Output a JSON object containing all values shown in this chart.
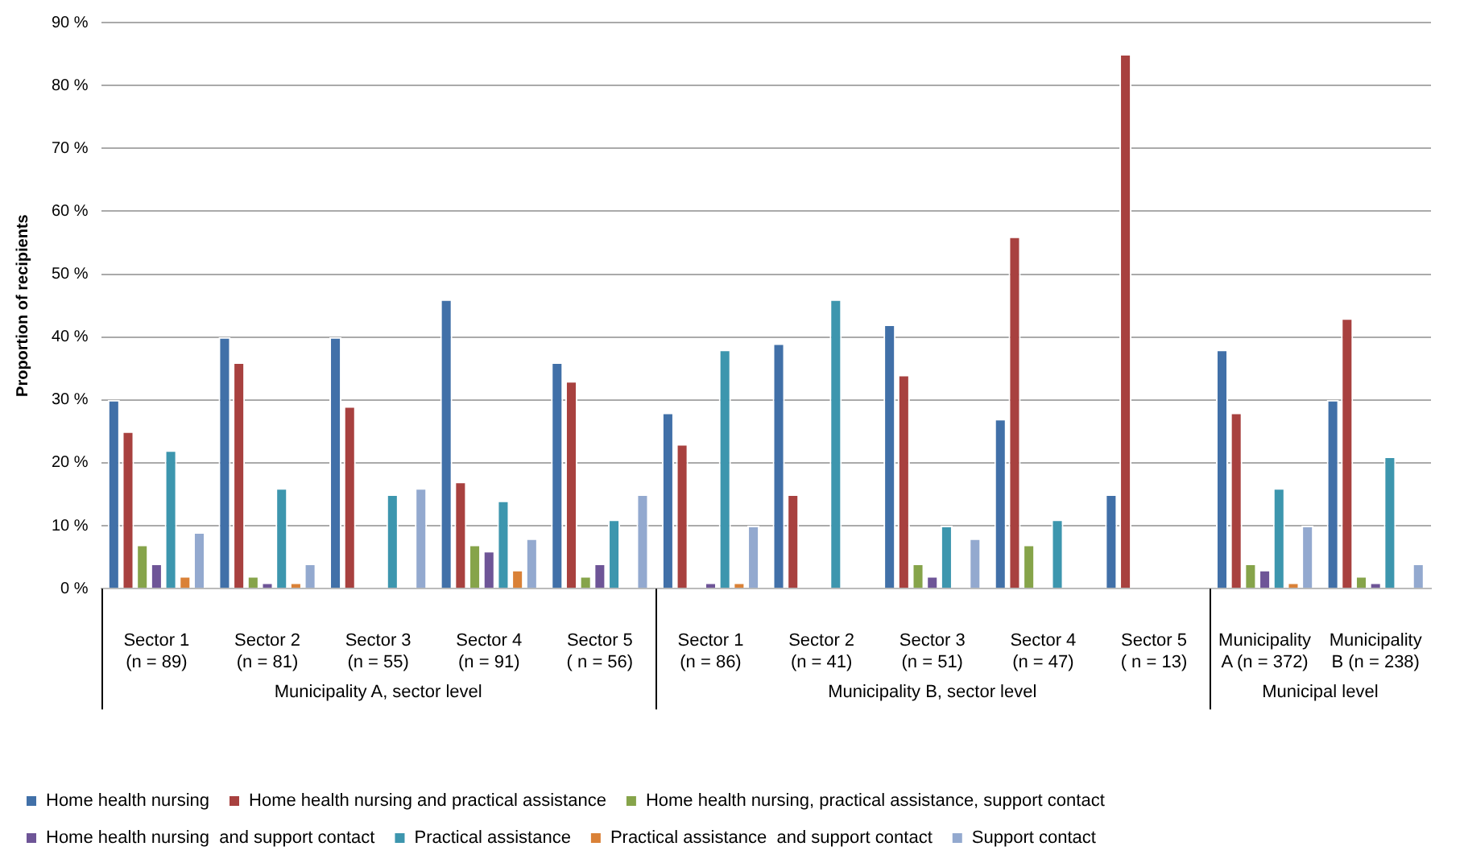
{
  "chart_data": {
    "type": "bar",
    "ylabel": "Proportion of recipients",
    "categories": [
      "Sector 1\n(n = 89)",
      "Sector 2\n(n = 81)",
      "Sector 3\n(n = 55)",
      "Sector 4\n(n = 91)",
      "Sector 5\n( n = 56)",
      "Sector 1\n(n = 86)",
      "Sector 2\n(n = 41)",
      "Sector 3\n(n = 51)",
      "Sector 4\n(n = 47)",
      "Sector 5\n( n = 13)",
      "Municipality\nA (n = 372)",
      "Municipality\nB (n = 238)"
    ],
    "series": [
      {
        "name": "Home health nursing",
        "color": "#4170a8",
        "values": [
          30,
          40,
          40,
          46,
          36,
          28,
          39,
          42,
          27,
          15,
          38,
          30
        ]
      },
      {
        "name": "Home health nursing and practical assistance",
        "color": "#a8413f",
        "values": [
          25,
          36,
          29,
          17,
          33,
          23,
          15,
          34,
          56,
          85,
          28,
          43
        ]
      },
      {
        "name": "Home health nursing, practical assistance, support contact",
        "color": "#86a44a",
        "values": [
          7,
          2,
          0,
          7,
          2,
          0,
          0,
          4,
          7,
          0,
          4,
          2
        ]
      },
      {
        "name": "Home health nursing  and support contact",
        "color": "#6e5597",
        "values": [
          4,
          1,
          0,
          6,
          4,
          1,
          0,
          2,
          0,
          0,
          3,
          1
        ]
      },
      {
        "name": "Practical assistance",
        "color": "#3d96ae",
        "values": [
          22,
          16,
          15,
          14,
          11,
          38,
          46,
          10,
          11,
          0,
          16,
          21
        ]
      },
      {
        "name": "Practical assistance  and support contact",
        "color": "#da8137",
        "values": [
          2,
          1,
          0,
          3,
          0,
          1,
          0,
          0,
          0,
          0,
          1,
          0
        ]
      },
      {
        "name": "Support contact",
        "color": "#93a9cf",
        "values": [
          9,
          4,
          16,
          8,
          15,
          10,
          0,
          8,
          0,
          0,
          10,
          4
        ]
      }
    ],
    "annotations": [
      "Municipality A, sector level",
      "Municipality B, sector level",
      "Municipal level"
    ],
    "ylim": [
      0,
      90
    ],
    "yticks": [
      {
        "value": 0,
        "label": "0 %"
      },
      {
        "value": 10,
        "label": "10 %"
      },
      {
        "value": 20,
        "label": "20 %"
      },
      {
        "value": 30,
        "label": "30 %"
      },
      {
        "value": 40,
        "label": "40 %"
      },
      {
        "value": 50,
        "label": "50 %"
      },
      {
        "value": 60,
        "label": "60 %"
      },
      {
        "value": 70,
        "label": "70 %"
      },
      {
        "value": 80,
        "label": "80 %"
      },
      {
        "value": 90,
        "label": "90 %"
      }
    ],
    "grid": "y",
    "legend": "bottom"
  }
}
